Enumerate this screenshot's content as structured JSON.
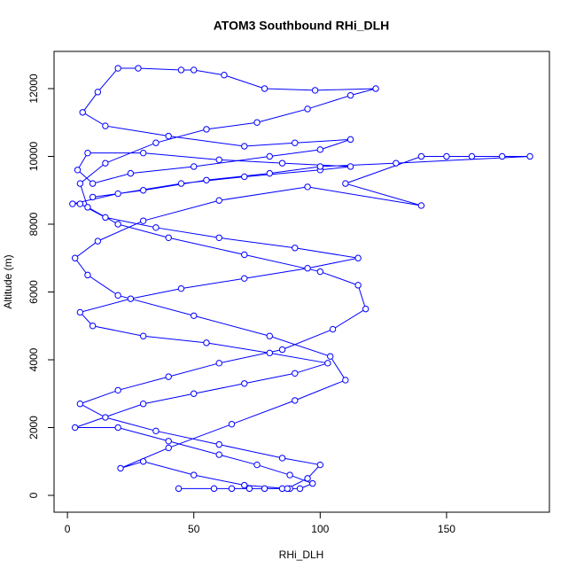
{
  "chart_data": {
    "type": "line",
    "title": "ATOM3 Southbound RHi_DLH",
    "x_label": "RHi_DLH",
    "y_label": "Altitude (m)",
    "xlim": [
      -5.3,
      190.7
    ],
    "ylim": [
      -497,
      13098
    ],
    "xticks": [
      0,
      50,
      100,
      150
    ],
    "yticks": [
      0,
      2000,
      4000,
      6000,
      8000,
      10000,
      12000
    ],
    "x": [
      44,
      58,
      65,
      72,
      78,
      85,
      88,
      92,
      97,
      88,
      75,
      60,
      40,
      20,
      3,
      30,
      50,
      70,
      90,
      103,
      80,
      55,
      30,
      10,
      5,
      25,
      45,
      70,
      95,
      115,
      90,
      60,
      35,
      15,
      5,
      2,
      20,
      45,
      70,
      100,
      112,
      85,
      60,
      30,
      8,
      4,
      10,
      25,
      50,
      80,
      100,
      112,
      90,
      70,
      40,
      15,
      6,
      12,
      20,
      28,
      45,
      50,
      62,
      78,
      98,
      122,
      112,
      95,
      75,
      55,
      35,
      15,
      5,
      8,
      20,
      40,
      70,
      100,
      115,
      118,
      105,
      85,
      60,
      40,
      20,
      5,
      15,
      35,
      60,
      85,
      100,
      95,
      87,
      70,
      50,
      30,
      21,
      40,
      65,
      90,
      110,
      104,
      80,
      50,
      20,
      8,
      3,
      12,
      30,
      60,
      95,
      140,
      110,
      140,
      150,
      160,
      172,
      183,
      130,
      100,
      80,
      55,
      30,
      10
    ],
    "series": [
      {
        "color": "#0000ff",
        "values": [
          200,
          200,
          200,
          200,
          200,
          200,
          200,
          200,
          350,
          600,
          900,
          1200,
          1600,
          2000,
          2000,
          2700,
          3000,
          3300,
          3600,
          3900,
          4200,
          4500,
          4700,
          5000,
          5400,
          5800,
          6100,
          6400,
          6700,
          7000,
          7300,
          7600,
          7900,
          8200,
          8600,
          8600,
          8900,
          9200,
          9400,
          9600,
          9700,
          9800,
          9900,
          10100,
          10100,
          9600,
          9200,
          9500,
          9700,
          10000,
          10200,
          10500,
          10400,
          10300,
          10600,
          10900,
          11300,
          11900,
          12600,
          12600,
          12550,
          12550,
          12400,
          12000,
          11950,
          12000,
          11800,
          11400,
          11000,
          10800,
          10400,
          9800,
          9200,
          8500,
          8000,
          7600,
          7100,
          6600,
          6200,
          5500,
          4900,
          4300,
          3900,
          3500,
          3100,
          2700,
          2300,
          1900,
          1500,
          1100,
          900,
          500,
          200,
          300,
          600,
          1000,
          800,
          1400,
          2100,
          2800,
          3400,
          4100,
          4700,
          5300,
          5900,
          6500,
          7000,
          7500,
          8100,
          8700,
          9100,
          8550,
          9200,
          10000,
          10000,
          10000,
          10000,
          10000,
          9800,
          9700,
          9500,
          9300,
          9000,
          8800
        ]
      }
    ]
  }
}
